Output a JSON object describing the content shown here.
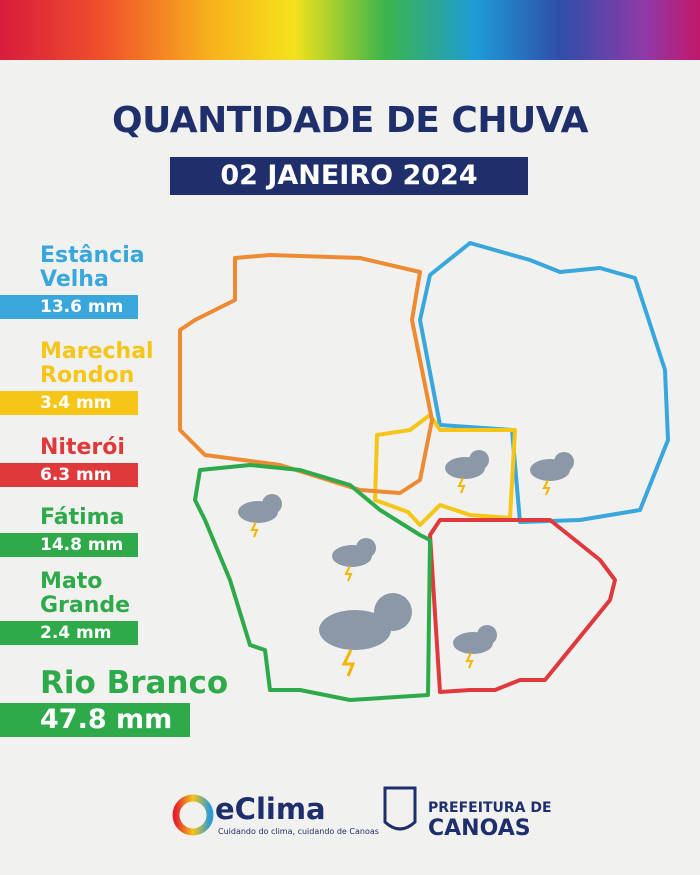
{
  "header": {
    "title": "QUANTIDADE DE CHUVA",
    "date": "02 JANEIRO 2024"
  },
  "regions": [
    {
      "name": "Estância Velha",
      "value": "13.6 mm",
      "color": "#39a7dc"
    },
    {
      "name": "Marechal Rondon",
      "value": "3.4 mm",
      "color": "#f5c518"
    },
    {
      "name": "Niterói",
      "value": "6.3 mm",
      "color": "#e0393b"
    },
    {
      "name": "Fátima",
      "value": "14.8 mm",
      "color": "#2eaa4a"
    },
    {
      "name": "Mato Grande",
      "value": "2.4 mm",
      "color": "#2eaa4a"
    },
    {
      "name": "Rio Branco",
      "value": "47.8 mm",
      "color": "#2eaa4a"
    }
  ],
  "footer": {
    "brand": "eClima",
    "tagline": "Cuidando do clima, cuidando de Canoas",
    "city_line1": "PREFEITURA DE",
    "city_line2": "CANOAS"
  }
}
